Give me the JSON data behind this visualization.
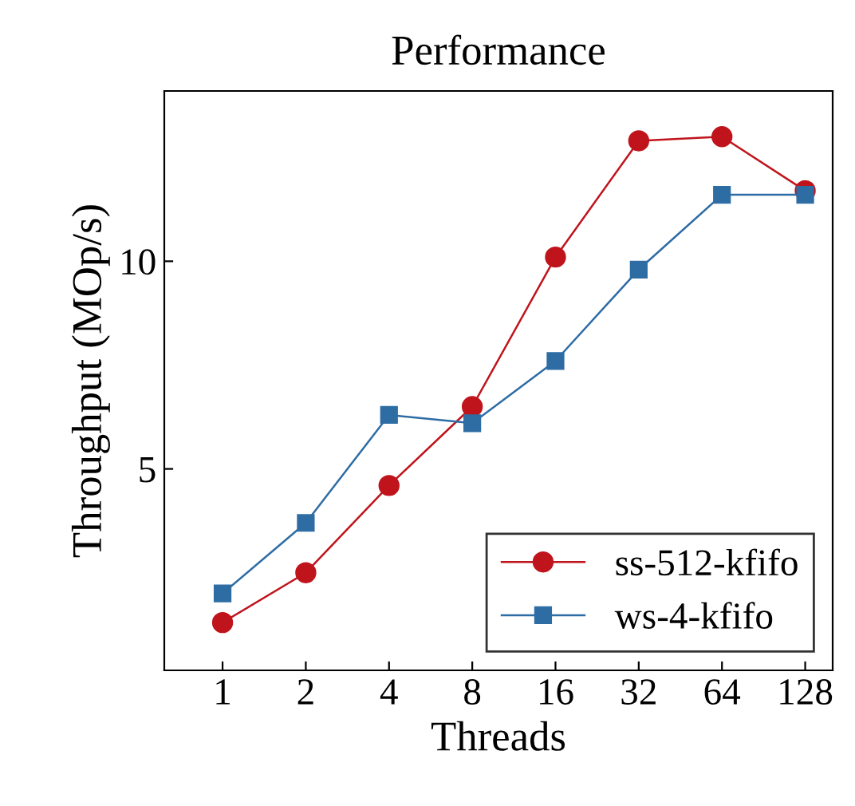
{
  "chart_data": {
    "type": "line",
    "title": "Performance",
    "xlabel": "Threads",
    "ylabel": "Throughput (MOp/s)",
    "categories": [
      "1",
      "2",
      "4",
      "8",
      "16",
      "32",
      "64",
      "128"
    ],
    "series": [
      {
        "name": "ss-512-kfifo",
        "color": "#c0141c",
        "marker": "circle",
        "values": [
          1.3,
          2.5,
          4.6,
          6.5,
          10.1,
          12.9,
          13.0,
          11.7
        ]
      },
      {
        "name": "ws-4-kfifo",
        "color": "#2e6ca4",
        "marker": "square",
        "values": [
          2.0,
          3.7,
          6.3,
          6.1,
          7.6,
          9.8,
          11.6,
          11.6
        ]
      }
    ],
    "ylim": [
      0.15,
      14.1
    ],
    "yticks": [
      5,
      10
    ],
    "legend": "bottom right",
    "grid": false,
    "line_style": "solid"
  }
}
